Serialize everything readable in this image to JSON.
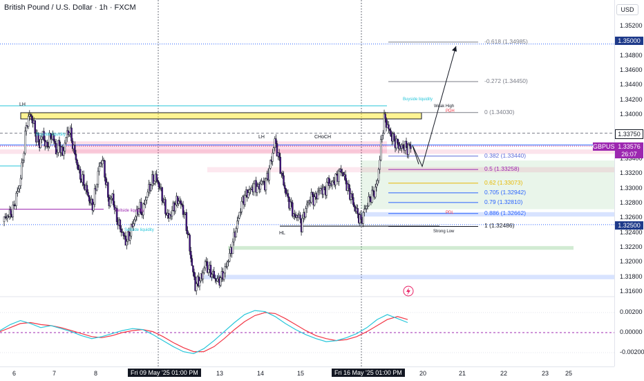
{
  "header": {
    "title": "British Pound / U.S. Dollar · 1h · FXCM",
    "currency_button": "USD"
  },
  "price_axis": [
    "1.35200",
    "1.35000",
    "1.34800",
    "1.34600",
    "1.34400",
    "1.34200",
    "1.34000",
    "1.33750",
    "1.33576",
    "1.33400",
    "1.33200",
    "1.33000",
    "1.32800",
    "1.32600",
    "1.32500",
    "1.32400",
    "1.32200",
    "1.32000",
    "1.31800",
    "1.31600"
  ],
  "price_tags": {
    "target": "1.35000",
    "level": "1.33750",
    "symbol": "GBPUSD",
    "current": "1.33576",
    "countdown": "26:07",
    "support": "1.32500"
  },
  "oscillator_axis": [
    "0.00200",
    "0.00000",
    "-0.00200"
  ],
  "time_axis": [
    {
      "label": "6"
    },
    {
      "label": "7"
    },
    {
      "label": "8"
    },
    {
      "label": "Fri 09 May '25   01:00 PM",
      "highlight": true
    },
    {
      "label": "13"
    },
    {
      "label": "14"
    },
    {
      "label": "15"
    },
    {
      "label": "Fri 16 May '25   01:00 PM",
      "highlight": true
    },
    {
      "label": "20"
    },
    {
      "label": "21"
    },
    {
      "label": "22"
    },
    {
      "label": "23"
    },
    {
      "label": "25"
    }
  ],
  "fib_levels": [
    {
      "label": "-0.618 (1.34985)",
      "price": 1.34985,
      "color": "#787b86"
    },
    {
      "label": "-0.272 (1.34450)",
      "price": 1.3445,
      "color": "#787b86"
    },
    {
      "label": "0 (1.34030)",
      "price": 1.3403,
      "color": "#787b86"
    },
    {
      "label": "0.382 (1.33440)",
      "price": 1.3344,
      "color": "#5b6bd9"
    },
    {
      "label": "0.5 (1.33258)",
      "price": 1.33258,
      "color": "#9c27b0"
    },
    {
      "label": "0.62 (1.33073)",
      "price": 1.33073,
      "color": "#e6b800"
    },
    {
      "label": "0.705 (1.32942)",
      "price": 1.32942,
      "color": "#2962ff"
    },
    {
      "label": "0.79 (1.32810)",
      "price": 1.3281,
      "color": "#2962ff"
    },
    {
      "label": "0.886 (1.32662)",
      "price": 1.32662,
      "color": "#2962ff"
    },
    {
      "label": "1 (1.32486)",
      "price": 1.32486,
      "color": "#131722"
    }
  ],
  "annotations": {
    "buyside_liquidity": "Buyside liquidity",
    "weak_high": "Weak High",
    "pdh": "PDH",
    "pdl": "PDL",
    "strong_low": "Strong Low",
    "sellside_liquidity": "Sellside liquidity",
    "buyside_liquidity_left": "Buyside liquidity",
    "sellside_liquidity_left": "Sellside liquidity"
  },
  "structure_labels": {
    "lh_left": "LH",
    "lh_mid": "LH",
    "choch": "CHoCH",
    "hl": "HL"
  },
  "chart_data": {
    "type": "candlestick",
    "x": "hourly bars, Tue 06 May 2025 to Mon 19 May 2025",
    "ylim": [
      1.3155,
      1.3532
    ],
    "close_path": [
      1.3255,
      1.3262,
      1.3265,
      1.327,
      1.329,
      1.3305,
      1.334,
      1.3385,
      1.34,
      1.3392,
      1.337,
      1.336,
      1.3375,
      1.3355,
      1.3368,
      1.3372,
      1.335,
      1.336,
      1.3345,
      1.337,
      1.338,
      1.336,
      1.334,
      1.332,
      1.331,
      1.33,
      1.3285,
      1.3275,
      1.33,
      1.333,
      1.334,
      1.331,
      1.328,
      1.329,
      1.3265,
      1.325,
      1.324,
      1.3228,
      1.3235,
      1.325,
      1.3262,
      1.3275,
      1.3268,
      1.3285,
      1.33,
      1.331,
      1.3315,
      1.3305,
      1.329,
      1.327,
      1.326,
      1.327,
      1.328,
      1.3285,
      1.3275,
      1.326,
      1.323,
      1.3195,
      1.3168,
      1.3175,
      1.318,
      1.32,
      1.319,
      1.3185,
      1.3178,
      1.3175,
      1.318,
      1.319,
      1.3205,
      1.322,
      1.324,
      1.326,
      1.328,
      1.329,
      1.3295,
      1.33,
      1.3305,
      1.33,
      1.331,
      1.3305,
      1.332,
      1.334,
      1.3365,
      1.3345,
      1.332,
      1.33,
      1.3285,
      1.3275,
      1.326,
      1.3265,
      1.325,
      1.3268,
      1.328,
      1.329,
      1.3285,
      1.3295,
      1.33,
      1.3295,
      1.331,
      1.3305,
      1.3312,
      1.3318,
      1.3325,
      1.3315,
      1.33,
      1.329,
      1.3275,
      1.3265,
      1.3255,
      1.327,
      1.328,
      1.329,
      1.3295,
      1.331,
      1.336,
      1.3395,
      1.3385,
      1.3372,
      1.3365,
      1.336,
      1.3355,
      1.3358,
      1.3354,
      1.3357
    ],
    "last_price": 1.33576,
    "oscillator": {
      "ylim": [
        -0.0024,
        0.0026
      ],
      "fast": [
        0.0002,
        0.0008,
        0.0012,
        0.0009,
        0.0005,
        0.0007,
        0.0004,
        0.0001,
        -0.0003,
        -0.0006,
        -0.0004,
        -0.0001,
        0.0002,
        0.0004,
        0.0003,
        -0.0002,
        -0.0008,
        -0.0014,
        -0.0019,
        -0.0021,
        -0.0016,
        -0.0008,
        0.0001,
        0.001,
        0.0018,
        0.0022,
        0.0021,
        0.0016,
        0.0009,
        0.0003,
        -0.0002,
        -0.0006,
        -0.0009,
        -0.0008,
        -0.0005,
        -0.0001,
        0.0005,
        0.0013,
        0.0018,
        0.0014,
        0.001
      ],
      "slow": [
        0.0001,
        0.0005,
        0.0009,
        0.001,
        0.0008,
        0.0007,
        0.0005,
        0.0002,
        -0.0001,
        -0.0004,
        -0.0005,
        -0.0003,
        0.0,
        0.0002,
        0.0003,
        0.0001,
        -0.0004,
        -0.001,
        -0.0015,
        -0.0019,
        -0.0019,
        -0.0014,
        -0.0006,
        0.0003,
        0.0011,
        0.0017,
        0.002,
        0.0019,
        0.0014,
        0.0008,
        0.0002,
        -0.0003,
        -0.0006,
        -0.0008,
        -0.0007,
        -0.0004,
        0.0001,
        0.0007,
        0.0013,
        0.0016,
        0.0013
      ]
    },
    "projection": [
      1.3354,
      1.333,
      1.3493
    ],
    "zones": [
      {
        "name": "supply",
        "from": 1.3398,
        "to": 1.3405
      },
      {
        "name": "premium",
        "from": 1.335,
        "to": 1.3364
      },
      {
        "name": "discount",
        "from": 1.3272,
        "to": 1.3338
      },
      {
        "name": "demand-low",
        "from": 1.318,
        "to": 1.3185
      }
    ]
  }
}
